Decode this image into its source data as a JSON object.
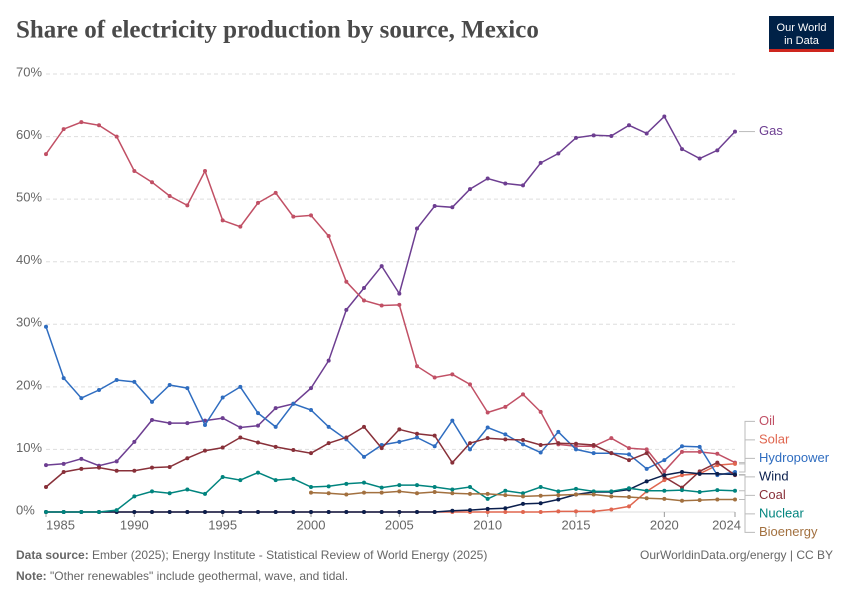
{
  "chart_data": {
    "type": "line",
    "title": "Share of electricity production by source, Mexico",
    "logo": [
      "Our World",
      "in Data"
    ],
    "source_label": "Data source:",
    "source": "Ember (2025); Energy Institute - Statistical Review of World Energy (2025)",
    "license": "OurWorldinData.org/energy | CC BY",
    "note_label": "Note:",
    "note": "\"Other renewables\" include geothermal, wave, and tidal.",
    "x": [
      1985,
      1986,
      1987,
      1988,
      1989,
      1990,
      1991,
      1992,
      1993,
      1994,
      1995,
      1996,
      1997,
      1998,
      1999,
      2000,
      2001,
      2002,
      2003,
      2004,
      2005,
      2006,
      2007,
      2008,
      2009,
      2010,
      2011,
      2012,
      2013,
      2014,
      2015,
      2016,
      2017,
      2018,
      2019,
      2020,
      2021,
      2022,
      2023,
      2024
    ],
    "xlim": [
      1985,
      2024
    ],
    "xticks": [
      1985,
      1990,
      1995,
      2000,
      2005,
      2010,
      2015,
      2020,
      2024
    ],
    "ylim": [
      0,
      70
    ],
    "yticks": [
      {
        "value": 0,
        "label": "0%"
      },
      {
        "value": 10,
        "label": "10%"
      },
      {
        "value": 20,
        "label": "20%"
      },
      {
        "value": 30,
        "label": "30%"
      },
      {
        "value": 40,
        "label": "40%"
      },
      {
        "value": 50,
        "label": "50%"
      },
      {
        "value": 60,
        "label": "60%"
      },
      {
        "value": 70,
        "label": "70%"
      }
    ],
    "grid": true,
    "series": [
      {
        "name": "Gas",
        "color": "#6d3e91",
        "values": [
          7.5,
          7.7,
          8.5,
          7.4,
          8.1,
          11.2,
          14.7,
          14.2,
          14.2,
          14.6,
          15.0,
          13.5,
          13.8,
          16.6,
          17.3,
          19.8,
          24.2,
          32.3,
          35.8,
          39.3,
          34.9,
          45.3,
          48.9,
          48.7,
          51.6,
          53.3,
          52.5,
          52.2,
          55.8,
          57.3,
          59.8,
          60.2,
          60.1,
          61.8,
          60.5,
          63.2,
          58.0,
          56.5,
          57.8,
          60.8
        ]
      },
      {
        "name": "Oil",
        "color": "#c15065",
        "values": [
          57.2,
          61.2,
          62.3,
          61.8,
          60.0,
          54.5,
          52.7,
          50.5,
          49.0,
          54.5,
          46.6,
          45.6,
          49.4,
          51.0,
          47.2,
          47.4,
          44.1,
          36.8,
          33.8,
          33.0,
          33.1,
          23.3,
          21.5,
          22.0,
          20.4,
          15.9,
          16.8,
          18.8,
          16.0,
          10.8,
          10.5,
          10.5,
          11.8,
          10.2,
          10.0,
          6.5,
          9.6,
          9.6,
          9.3,
          7.9
        ]
      },
      {
        "name": "Solar",
        "color": "#e0664f",
        "values": [
          0,
          0,
          0,
          0,
          0,
          0,
          0,
          0,
          0,
          0,
          0,
          0,
          0,
          0,
          0,
          0,
          0,
          0,
          0,
          0,
          0,
          0,
          0,
          0,
          0,
          0,
          0,
          0,
          0,
          0.1,
          0.1,
          0.1,
          0.4,
          0.9,
          3.3,
          5.1,
          5.9,
          6.1,
          7.5,
          7.7
        ]
      },
      {
        "name": "Hydropower",
        "color": "#2f6dc0",
        "values": [
          29.6,
          21.4,
          18.2,
          19.5,
          21.1,
          20.8,
          17.6,
          20.3,
          19.8,
          13.9,
          18.3,
          20.0,
          15.8,
          13.6,
          17.3,
          16.3,
          13.6,
          11.6,
          8.8,
          10.7,
          11.2,
          11.9,
          10.5,
          14.6,
          10.0,
          13.5,
          12.4,
          10.8,
          9.5,
          12.8,
          10.0,
          9.4,
          9.4,
          9.2,
          6.9,
          8.3,
          10.5,
          10.4,
          5.9,
          6.4
        ]
      },
      {
        "name": "Coal",
        "color": "#883039",
        "values": [
          4.0,
          6.4,
          6.9,
          7.1,
          6.6,
          6.6,
          7.1,
          7.2,
          8.6,
          9.8,
          10.3,
          11.9,
          11.1,
          10.4,
          9.9,
          9.4,
          11.0,
          11.9,
          13.6,
          10.2,
          13.2,
          12.5,
          12.2,
          7.9,
          11.0,
          11.8,
          11.6,
          11.5,
          10.7,
          11.0,
          10.9,
          10.7,
          9.4,
          8.3,
          9.4,
          5.6,
          3.9,
          6.5,
          7.9,
          5.9
        ]
      },
      {
        "name": "Wind",
        "color": "#0b1f4d",
        "values": [
          0,
          0,
          0,
          0,
          0,
          0,
          0,
          0,
          0,
          0,
          0,
          0,
          0,
          0,
          0,
          0,
          0,
          0,
          0,
          0,
          0,
          0,
          0,
          0.2,
          0.3,
          0.5,
          0.6,
          1.3,
          1.4,
          2.0,
          2.8,
          3.2,
          3.2,
          3.6,
          4.9,
          5.9,
          6.4,
          6.1,
          6.1,
          6.0
        ]
      },
      {
        "name": "Nuclear",
        "color": "#00847e",
        "values": [
          0,
          0,
          0,
          0,
          0.3,
          2.5,
          3.3,
          3.0,
          3.6,
          2.9,
          5.6,
          5.1,
          6.3,
          5.1,
          5.3,
          4.0,
          4.1,
          4.5,
          4.7,
          3.9,
          4.3,
          4.3,
          4.0,
          3.6,
          4.0,
          2.1,
          3.4,
          3.0,
          4.0,
          3.3,
          3.7,
          3.3,
          3.3,
          3.8,
          3.4,
          3.4,
          3.5,
          3.2,
          3.5,
          3.4
        ]
      },
      {
        "name": "Bioenergy",
        "color": "#a2703f",
        "values": [
          null,
          null,
          null,
          null,
          null,
          null,
          null,
          null,
          null,
          null,
          null,
          null,
          null,
          null,
          null,
          3.1,
          3.0,
          2.8,
          3.1,
          3.1,
          3.3,
          3.0,
          3.2,
          3.0,
          2.9,
          2.9,
          2.7,
          2.5,
          2.6,
          2.7,
          2.8,
          2.8,
          2.5,
          2.4,
          2.2,
          2.1,
          1.8,
          1.9,
          2.0,
          2.0
        ]
      }
    ]
  }
}
